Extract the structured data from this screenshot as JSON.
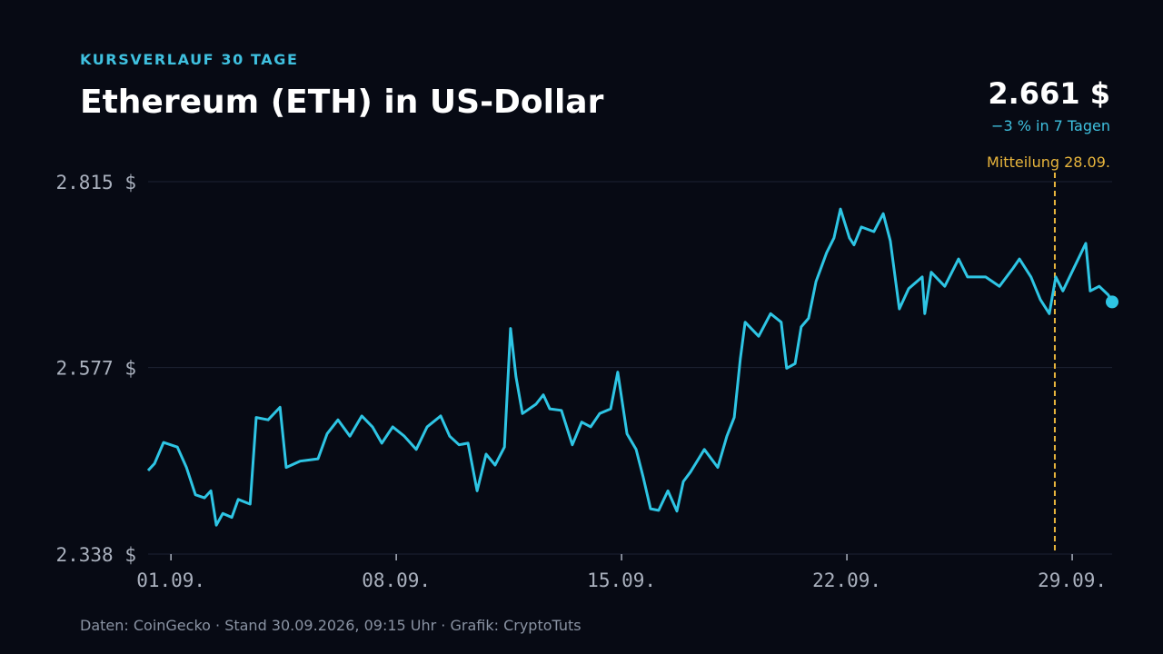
{
  "chart_data": {
    "type": "line",
    "kicker": "KURSVERLAUF 30 TAGE",
    "title": "Ethereum (ETH) in US-Dollar",
    "current_price": "2.661 $",
    "change": "−3 % in 7 Tagen",
    "annotation": {
      "x": 28.46,
      "label": "Mitteilung 28.09."
    },
    "source": "Daten: CoinGecko · Stand 30.09.2026, 09:15 Uhr · Grafik: CryptoTuts",
    "color": "#2ec5e4",
    "annotation_color": "#e8b53c",
    "grid": true,
    "xlim": [
      0.29,
      30.24
    ],
    "ylim": [
      2338,
      2815
    ],
    "yticks": [
      {
        "value": 2338,
        "label": "2.338 $"
      },
      {
        "value": 2577,
        "label": "2.577 $"
      },
      {
        "value": 2815,
        "label": "2.815 $"
      }
    ],
    "xticks": [
      {
        "value": 1,
        "label": "01.09."
      },
      {
        "value": 8,
        "label": "08.09."
      },
      {
        "value": 15,
        "label": "15.09."
      },
      {
        "value": 22,
        "label": "22.09."
      },
      {
        "value": 29,
        "label": "29.09."
      }
    ],
    "x": [
      0.29,
      0.49,
      0.77,
      1.2,
      1.48,
      1.76,
      2.04,
      2.24,
      2.41,
      2.61,
      2.89,
      3.09,
      3.46,
      3.65,
      4.02,
      4.39,
      4.58,
      5.01,
      5.57,
      5.85,
      6.19,
      6.56,
      6.93,
      7.26,
      7.55,
      7.89,
      8.25,
      8.62,
      8.96,
      9.38,
      9.66,
      9.95,
      10.23,
      10.51,
      10.79,
      11.07,
      11.36,
      11.55,
      11.72,
      11.92,
      12.34,
      12.57,
      12.77,
      13.13,
      13.47,
      13.76,
      14.04,
      14.32,
      14.66,
      14.88,
      15.17,
      15.45,
      15.67,
      15.9,
      16.15,
      16.44,
      16.72,
      16.92,
      17.14,
      17.57,
      17.99,
      18.27,
      18.5,
      18.69,
      18.84,
      19.26,
      19.63,
      19.96,
      20.13,
      20.39,
      20.58,
      20.81,
      21.04,
      21.37,
      21.6,
      21.8,
      22.08,
      22.22,
      22.45,
      22.84,
      23.13,
      23.35,
      23.63,
      23.92,
      24.34,
      24.42,
      24.62,
      25.04,
      25.47,
      25.75,
      26.31,
      26.74,
      27.16,
      27.36,
      27.72,
      28.01,
      28.29,
      28.49,
      28.71,
      28.99,
      29.42,
      29.56,
      29.84,
      30.12,
      30.24
    ],
    "values": [
      2445,
      2454,
      2481,
      2475,
      2449,
      2414,
      2410,
      2419,
      2375,
      2390,
      2385,
      2408,
      2402,
      2513,
      2510,
      2526,
      2449,
      2457,
      2460,
      2492,
      2510,
      2489,
      2515,
      2501,
      2480,
      2501,
      2489,
      2472,
      2501,
      2515,
      2489,
      2478,
      2480,
      2419,
      2466,
      2452,
      2475,
      2627,
      2565,
      2518,
      2530,
      2542,
      2524,
      2522,
      2478,
      2507,
      2501,
      2518,
      2524,
      2571,
      2492,
      2472,
      2437,
      2396,
      2394,
      2419,
      2393,
      2431,
      2443,
      2472,
      2449,
      2489,
      2513,
      2588,
      2635,
      2617,
      2646,
      2635,
      2576,
      2582,
      2629,
      2640,
      2687,
      2724,
      2743,
      2780,
      2743,
      2734,
      2757,
      2751,
      2774,
      2739,
      2652,
      2678,
      2693,
      2646,
      2699,
      2681,
      2716,
      2693,
      2693,
      2681,
      2704,
      2716,
      2693,
      2664,
      2646,
      2693,
      2675,
      2699,
      2736,
      2675,
      2681,
      2670,
      2661
    ]
  }
}
